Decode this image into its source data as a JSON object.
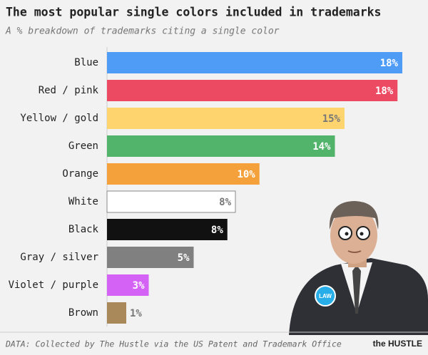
{
  "chart_data": {
    "type": "bar",
    "orientation": "horizontal",
    "title": "The most popular single colors included in trademarks",
    "subtitle": "A % breakdown of trademarks citing a single color",
    "source": "DATA: Collected by The Hustle via the US Patent and Trademark Office",
    "brand": "the HUSTLE",
    "badge": "LAW",
    "categories": [
      "Blue",
      "Red / pink",
      "Yellow / gold",
      "Green",
      "Orange",
      "White",
      "Black",
      "Gray / silver",
      "Violet / purple",
      "Brown"
    ],
    "values": [
      18.4,
      18.1,
      14.8,
      14.2,
      9.5,
      8.0,
      7.5,
      5.4,
      2.6,
      1.2
    ],
    "value_labels": [
      "18%",
      "18%",
      "15%",
      "14%",
      "10%",
      "8%",
      "8%",
      "5%",
      "3%",
      "1%"
    ],
    "colors": [
      "#4f9cf7",
      "#ec4a63",
      "#fed46f",
      "#52b36b",
      "#f4a13b",
      "#ffffff",
      "#111111",
      "#808080",
      "#d463f5",
      "#a9895a"
    ],
    "xlim": [
      0,
      20
    ]
  }
}
